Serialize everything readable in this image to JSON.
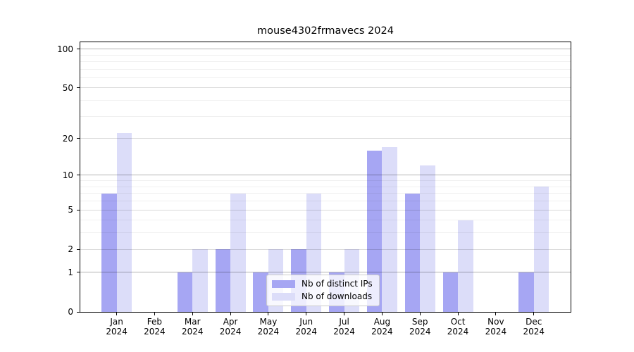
{
  "chart_data": {
    "type": "bar",
    "title": "mouse4302frmavecs 2024",
    "categories": [
      "Jan",
      "Feb",
      "Mar",
      "Apr",
      "May",
      "Jun",
      "Jul",
      "Aug",
      "Sep",
      "Oct",
      "Nov",
      "Dec"
    ],
    "x_year_label": "2024",
    "series": [
      {
        "name": "Nb of distinct IPs",
        "color": "#a6a6f3",
        "values": [
          7,
          0,
          1,
          2,
          1,
          2,
          1,
          16,
          7,
          1,
          0,
          1
        ]
      },
      {
        "name": "Nb of downloads",
        "color": "#dcddf9",
        "values": [
          22,
          0,
          2,
          7,
          2,
          7,
          2,
          17,
          12,
          4,
          0,
          8
        ]
      }
    ],
    "y_axis": {
      "scale": "log(1+x)",
      "tick_labels": [
        "100",
        "50",
        "20",
        "10",
        "5",
        "2",
        "1",
        "0"
      ],
      "tick_values": [
        100,
        50,
        20,
        10,
        5,
        2,
        1,
        0
      ],
      "minor_gridline_values": [
        3,
        4,
        6,
        7,
        8,
        9,
        30,
        40,
        60,
        70,
        80,
        90
      ],
      "emphasized_gridline_values": [
        1,
        10,
        100
      ],
      "ylim": [
        0,
        115
      ]
    },
    "legend": {
      "position": "lower center"
    },
    "grid": true
  }
}
